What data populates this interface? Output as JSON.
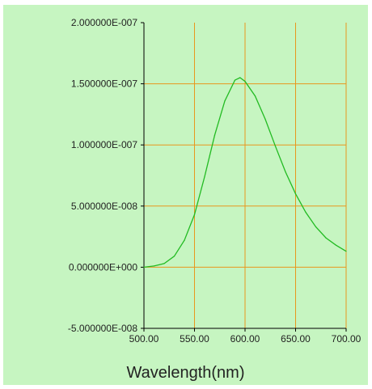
{
  "colors": {
    "background": "#c6f5c1",
    "grid": "#e8961e",
    "axis": "#000000",
    "series": "#22bb22",
    "text": "#222222"
  },
  "chart_data": {
    "type": "line",
    "title": "",
    "xlabel": "Wavelength(nm)",
    "ylabel": "",
    "xlim": [
      500,
      700
    ],
    "ylim": [
      -5e-08,
      2e-07
    ],
    "grid": true,
    "x_ticks": [
      500,
      550,
      600,
      650,
      700
    ],
    "x_tick_labels": [
      "500.00",
      "550.00",
      "600.00",
      "650.00",
      "700.00"
    ],
    "y_ticks": [
      -5e-08,
      0,
      5e-08,
      1e-07,
      1.5e-07,
      2e-07
    ],
    "y_tick_labels": [
      "-5.000000E-008",
      "0.000000E+000",
      "5.000000E-008",
      "1.000000E-007",
      "1.500000E-007",
      "2.000000E-007"
    ],
    "series": [
      {
        "x": [
          500,
          510,
          520,
          530,
          540,
          550,
          560,
          570,
          580,
          590,
          595,
          600,
          610,
          620,
          630,
          640,
          650,
          660,
          670,
          680,
          690,
          700
        ],
        "y": [
          0,
          1e-09,
          3e-09,
          9e-09,
          2.2e-08,
          4.3e-08,
          7.4e-08,
          1.08e-07,
          1.36e-07,
          1.53e-07,
          1.55e-07,
          1.52e-07,
          1.4e-07,
          1.21e-07,
          9.9e-08,
          7.8e-08,
          6e-08,
          4.5e-08,
          3.3e-08,
          2.4e-08,
          1.8e-08,
          1.3e-08
        ]
      }
    ]
  }
}
